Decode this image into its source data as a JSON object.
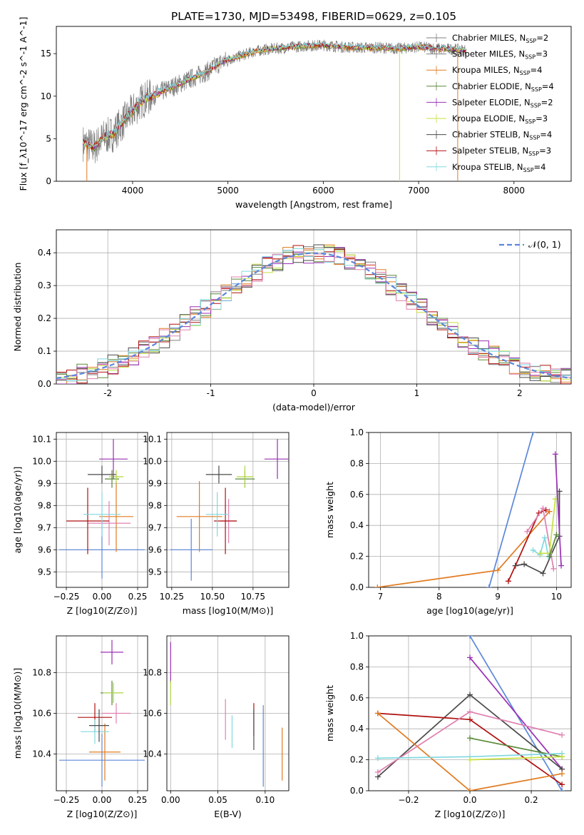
{
  "title": "PLATE=1730, MJD=53498, FIBERID=0629, z=0.105",
  "colors": {
    "gray": "#808080",
    "orange": "#e07b20",
    "blue": "#5b87db",
    "purple": "#9b30b5",
    "green": "#5a8a3a",
    "yellow": "#c8e040",
    "dark": "#4a4a4a",
    "red": "#b01010",
    "cyan": "#80d8e0",
    "pink": "#e080b0",
    "yelgreen": "#b0d840",
    "grid": "#b0b0b0"
  },
  "chart_data": [
    {
      "id": "spectrum",
      "type": "line",
      "xlabel": "wavelength [Angstrom, rest frame]",
      "ylabel": "Flux [f_λ10^-17 erg cm^-2 s^-1 A^-1]",
      "xlim": [
        3200,
        8600
      ],
      "ylim": [
        0,
        18.2
      ],
      "xticks": [
        4000,
        5000,
        6000,
        7000,
        8000
      ],
      "yticks": [
        0,
        5,
        10,
        15
      ],
      "grid": false,
      "legend_position": "top-right",
      "legend": [
        {
          "label": "Chabrier MILES, N",
          "sub": "SSP",
          "tail": "=2",
          "color": "gray"
        },
        {
          "label": "Salpeter MILES, N",
          "sub": "SSP",
          "tail": "=3",
          "color": "gray"
        },
        {
          "label": "Kroupa MILES, N",
          "sub": "SSP",
          "tail": "=4",
          "color": "orange"
        },
        {
          "label": "Chabrier ELODIE, N",
          "sub": "SSP",
          "tail": "=4",
          "color": "green"
        },
        {
          "label": "Salpeter ELODIE, N",
          "sub": "SSP",
          "tail": "=2",
          "color": "purple"
        },
        {
          "label": "Kroupa ELODIE, N",
          "sub": "SSP",
          "tail": "=3",
          "color": "yellow"
        },
        {
          "label": "Chabrier STELIB, N",
          "sub": "SSP",
          "tail": "=4",
          "color": "dark"
        },
        {
          "label": "Salpeter STELIB, N",
          "sub": "SSP",
          "tail": "=3",
          "color": "red"
        },
        {
          "label": "Kroupa STELIB, N",
          "sub": "SSP",
          "tail": "=4",
          "color": "cyan"
        }
      ],
      "continuum": [
        [
          3480,
          4.5
        ],
        [
          3600,
          4.0
        ],
        [
          3700,
          5.2
        ],
        [
          3800,
          5.6
        ],
        [
          3900,
          7.0
        ],
        [
          4000,
          8.2
        ],
        [
          4100,
          9.5
        ],
        [
          4200,
          10.0
        ],
        [
          4300,
          10.5
        ],
        [
          4400,
          11.0
        ],
        [
          4500,
          11.5
        ],
        [
          4600,
          12.0
        ],
        [
          4700,
          12.5
        ],
        [
          4800,
          13.0
        ],
        [
          4900,
          13.8
        ],
        [
          5000,
          14.3
        ],
        [
          5100,
          14.6
        ],
        [
          5200,
          15.0
        ],
        [
          5300,
          15.3
        ],
        [
          5400,
          15.5
        ],
        [
          5500,
          15.6
        ],
        [
          5600,
          15.7
        ],
        [
          5800,
          15.9
        ],
        [
          6000,
          16.0
        ],
        [
          6200,
          15.8
        ],
        [
          6400,
          15.7
        ],
        [
          6600,
          15.7
        ],
        [
          6800,
          15.6
        ],
        [
          7000,
          15.8
        ],
        [
          7200,
          15.6
        ],
        [
          7400,
          15.5
        ],
        [
          7500,
          15.4
        ]
      ],
      "spikes": [
        [
          3520,
          0
        ],
        [
          6800,
          0
        ],
        [
          7410,
          0
        ]
      ]
    },
    {
      "id": "residuals",
      "type": "line",
      "xlabel": "(data-model)/error",
      "ylabel": "Normed distribution",
      "xlim": [
        -2.5,
        2.5
      ],
      "ylim": [
        0,
        0.47
      ],
      "xticks": [
        -2,
        -1,
        0,
        1,
        2
      ],
      "yticks": [
        0.0,
        0.1,
        0.2,
        0.3,
        0.4
      ],
      "grid": true,
      "legend_position": "top-right",
      "legend_label": "𝒩(0, 1)",
      "gaussian": {
        "mean": 0,
        "sigma": 1,
        "color": "blue"
      },
      "hist_colors": [
        "gray",
        "orange",
        "green",
        "purple",
        "yellow",
        "dark",
        "red",
        "cyan",
        "pink"
      ]
    },
    {
      "id": "age-vs-Z",
      "type": "scatter",
      "xlabel": "Z [log10(Z/Z⊙)]",
      "ylabel": "age  [log10(age/yr)]",
      "xlim": [
        -0.32,
        0.32
      ],
      "ylim": [
        9.43,
        10.13
      ],
      "xticks": [
        -0.25,
        0.0,
        0.25
      ],
      "xticklabels": [
        "−0.25",
        "0.00",
        "0.25"
      ],
      "yticks": [
        9.5,
        9.6,
        9.7,
        9.8,
        9.9,
        10.0,
        10.1
      ],
      "grid": true,
      "points": [
        {
          "x": 0.0,
          "y": 9.6,
          "xerr": 0.3,
          "yerr": 0.13,
          "color": "blue"
        },
        {
          "x": 0.1,
          "y": 9.75,
          "xerr": 0.12,
          "yerr": 0.16,
          "color": "orange"
        },
        {
          "x": 0.05,
          "y": 9.72,
          "xerr": 0.15,
          "yerr": 0.1,
          "color": "pink"
        },
        {
          "x": -0.1,
          "y": 9.73,
          "xerr": 0.15,
          "yerr": 0.15,
          "color": "red"
        },
        {
          "x": 0.0,
          "y": 9.76,
          "xerr": 0.13,
          "yerr": 0.1,
          "color": "cyan"
        },
        {
          "x": 0.0,
          "y": 9.94,
          "xerr": 0.1,
          "yerr": 0.04,
          "color": "dark"
        },
        {
          "x": 0.07,
          "y": 9.92,
          "xerr": 0.05,
          "yerr": 0.04,
          "color": "green"
        },
        {
          "x": 0.1,
          "y": 9.93,
          "xerr": 0.05,
          "yerr": 0.03,
          "color": "yelgreen"
        },
        {
          "x": 0.08,
          "y": 10.01,
          "xerr": 0.1,
          "yerr": 0.09,
          "color": "purple"
        }
      ]
    },
    {
      "id": "age-vs-mass",
      "type": "scatter",
      "xlabel": "mass [log10(M/M⊙)]",
      "ylabel": "",
      "xlim": [
        10.22,
        10.97
      ],
      "ylim": [
        9.43,
        10.13
      ],
      "xticks": [
        10.25,
        10.5,
        10.75
      ],
      "xticklabels": [
        "10.25",
        "10.50",
        "10.75"
      ],
      "yticks": [
        9.5,
        9.6,
        9.7,
        9.8,
        9.9,
        10.0,
        10.1
      ],
      "grid": true,
      "points": [
        {
          "x": 10.37,
          "y": 9.6,
          "xerr": 0.13,
          "yerr": 0.14,
          "color": "blue"
        },
        {
          "x": 10.42,
          "y": 9.75,
          "xerr": 0.14,
          "yerr": 0.16,
          "color": "orange"
        },
        {
          "x": 10.6,
          "y": 9.73,
          "xerr": 0.05,
          "yerr": 0.1,
          "color": "pink"
        },
        {
          "x": 10.58,
          "y": 9.73,
          "xerr": 0.07,
          "yerr": 0.15,
          "color": "red"
        },
        {
          "x": 10.53,
          "y": 9.76,
          "xerr": 0.07,
          "yerr": 0.1,
          "color": "cyan"
        },
        {
          "x": 10.54,
          "y": 9.94,
          "xerr": 0.08,
          "yerr": 0.04,
          "color": "dark"
        },
        {
          "x": 10.7,
          "y": 9.92,
          "xerr": 0.06,
          "yerr": 0.04,
          "color": "green"
        },
        {
          "x": 10.7,
          "y": 9.93,
          "xerr": 0.05,
          "yerr": 0.05,
          "color": "yelgreen"
        },
        {
          "x": 10.9,
          "y": 10.01,
          "xerr": 0.08,
          "yerr": 0.09,
          "color": "purple"
        }
      ]
    },
    {
      "id": "weight-vs-age",
      "type": "line",
      "xlabel": "age  [log10(age/yr)]",
      "ylabel": "mass weight",
      "xlim": [
        6.8,
        10.25
      ],
      "ylim": [
        0,
        1
      ],
      "xticks": [
        7,
        8,
        9,
        10
      ],
      "yticks": [
        0.0,
        0.2,
        0.4,
        0.6,
        0.8,
        1.0
      ],
      "grid": true,
      "series": [
        {
          "color": "blue",
          "points": [
            [
              8.85,
              0
            ],
            [
              9.6,
              1.0
            ]
          ]
        },
        {
          "color": "orange",
          "points": [
            [
              6.95,
              0
            ],
            [
              9.0,
              0.11
            ],
            [
              9.88,
              0.49
            ]
          ]
        },
        {
          "color": "red",
          "points": [
            [
              9.18,
              0.04
            ],
            [
              9.3,
              0.14
            ],
            [
              9.7,
              0.48
            ],
            [
              9.82,
              0.5
            ]
          ]
        },
        {
          "color": "dark",
          "points": [
            [
              9.3,
              0.14
            ],
            [
              9.45,
              0.15
            ],
            [
              9.77,
              0.09
            ],
            [
              10.05,
              0.33
            ],
            [
              10.05,
              0.62
            ]
          ]
        },
        {
          "color": "pink",
          "points": [
            [
              9.5,
              0.36
            ],
            [
              9.77,
              0.51
            ],
            [
              9.95,
              0.12
            ]
          ]
        },
        {
          "color": "cyan",
          "points": [
            [
              9.6,
              0.24
            ],
            [
              9.72,
              0.21
            ],
            [
              9.8,
              0.32
            ],
            [
              9.86,
              0.2
            ]
          ]
        },
        {
          "color": "yellow",
          "points": [
            [
              9.72,
              0.22
            ],
            [
              9.88,
              0.22
            ],
            [
              9.98,
              0.57
            ]
          ]
        },
        {
          "color": "purple",
          "points": [
            [
              9.98,
              0.86
            ],
            [
              10.08,
              0.14
            ]
          ]
        },
        {
          "color": "green",
          "points": [
            [
              9.88,
              0.2
            ],
            [
              10.0,
              0.34
            ]
          ]
        }
      ]
    },
    {
      "id": "mass-vs-Z",
      "type": "scatter",
      "xlabel": "Z [log10(Z/Z⊙)]",
      "ylabel": "mass [log10(M/M⊙)]",
      "xlim": [
        -0.32,
        0.32
      ],
      "ylim": [
        10.22,
        10.98
      ],
      "xticks": [
        -0.25,
        0.0,
        0.25
      ],
      "xticklabels": [
        "−0.25",
        "0.00",
        "0.25"
      ],
      "yticks": [
        10.4,
        10.6,
        10.8
      ],
      "grid": true,
      "points": [
        {
          "x": 0.0,
          "y": 10.37,
          "xerr": 0.3,
          "yerr": 0.13,
          "color": "blue"
        },
        {
          "x": 0.02,
          "y": 10.41,
          "xerr": 0.11,
          "yerr": 0.14,
          "color": "orange"
        },
        {
          "x": 0.1,
          "y": 10.6,
          "xerr": 0.1,
          "yerr": 0.05,
          "color": "pink"
        },
        {
          "x": -0.05,
          "y": 10.58,
          "xerr": 0.12,
          "yerr": 0.07,
          "color": "red"
        },
        {
          "x": -0.05,
          "y": 10.51,
          "xerr": 0.1,
          "yerr": 0.06,
          "color": "cyan"
        },
        {
          "x": -0.02,
          "y": 10.54,
          "xerr": 0.07,
          "yerr": 0.08,
          "color": "dark"
        },
        {
          "x": 0.07,
          "y": 10.7,
          "xerr": 0.08,
          "yerr": 0.06,
          "color": "green"
        },
        {
          "x": 0.08,
          "y": 10.7,
          "xerr": 0.07,
          "yerr": 0.05,
          "color": "yelgreen"
        },
        {
          "x": 0.07,
          "y": 10.9,
          "xerr": 0.08,
          "yerr": 0.06,
          "color": "purple"
        }
      ]
    },
    {
      "id": "mass-vs-EBV",
      "type": "scatter",
      "xlabel": "E(B-V)",
      "ylabel": "",
      "xlim": [
        -0.004,
        0.125
      ],
      "ylim": [
        10.22,
        10.98
      ],
      "xticks": [
        0.0,
        0.05,
        0.1
      ],
      "xticklabels": [
        "0.00",
        "0.05",
        "0.10"
      ],
      "yticks": [
        10.4,
        10.6,
        10.8
      ],
      "grid": true,
      "points": [
        {
          "x": 0.0,
          "y": 10.85,
          "yerr": 0.1,
          "color": "purple"
        },
        {
          "x": 0.0,
          "y": 10.7,
          "yerr": 0.06,
          "color": "yelgreen"
        },
        {
          "x": 0.058,
          "y": 10.57,
          "yerr": 0.1,
          "color": "pink"
        },
        {
          "x": 0.065,
          "y": 10.51,
          "yerr": 0.08,
          "color": "cyan"
        },
        {
          "x": 0.088,
          "y": 10.57,
          "yerr": 0.08,
          "color": "red"
        },
        {
          "x": 0.088,
          "y": 10.52,
          "yerr": 0.1,
          "color": "dark"
        },
        {
          "x": 0.098,
          "y": 10.44,
          "yerr": 0.2,
          "color": "blue"
        },
        {
          "x": 0.118,
          "y": 10.4,
          "yerr": 0.13,
          "color": "orange"
        }
      ]
    },
    {
      "id": "weight-vs-Z",
      "type": "line",
      "xlabel": "Z [log10(Z/Z⊙)]",
      "ylabel": "mass weight",
      "xlim": [
        -0.33,
        0.33
      ],
      "ylim": [
        0,
        1
      ],
      "xticks": [
        -0.2,
        0.0,
        0.2
      ],
      "xticklabels": [
        "−0.2",
        "0.0",
        "0.2"
      ],
      "yticks": [
        0.0,
        0.2,
        0.4,
        0.6,
        0.8,
        1.0
      ],
      "grid": true,
      "series": [
        {
          "color": "blue",
          "points": [
            [
              0.0,
              1.0
            ],
            [
              0.3,
              0.0
            ]
          ]
        },
        {
          "color": "purple",
          "points": [
            [
              0.0,
              0.86
            ],
            [
              0.3,
              0.14
            ]
          ]
        },
        {
          "color": "dark",
          "points": [
            [
              -0.3,
              0.09
            ],
            [
              0.0,
              0.62
            ],
            [
              0.3,
              0.14
            ]
          ]
        },
        {
          "color": "red",
          "points": [
            [
              -0.3,
              0.5
            ],
            [
              0.0,
              0.46
            ],
            [
              0.3,
              0.04
            ]
          ]
        },
        {
          "color": "orange",
          "points": [
            [
              -0.3,
              0.5
            ],
            [
              0.0,
              0.0
            ],
            [
              0.3,
              0.11
            ]
          ]
        },
        {
          "color": "pink",
          "points": [
            [
              -0.3,
              0.12
            ],
            [
              0.0,
              0.51
            ],
            [
              0.3,
              0.36
            ]
          ]
        },
        {
          "color": "green",
          "points": [
            [
              0.0,
              0.34
            ],
            [
              0.3,
              0.22
            ]
          ]
        },
        {
          "color": "cyan",
          "points": [
            [
              -0.3,
              0.21
            ],
            [
              0.0,
              0.22
            ],
            [
              0.3,
              0.24
            ]
          ]
        },
        {
          "color": "yellow",
          "points": [
            [
              0.0,
              0.2
            ],
            [
              0.3,
              0.22
            ]
          ]
        }
      ]
    }
  ]
}
